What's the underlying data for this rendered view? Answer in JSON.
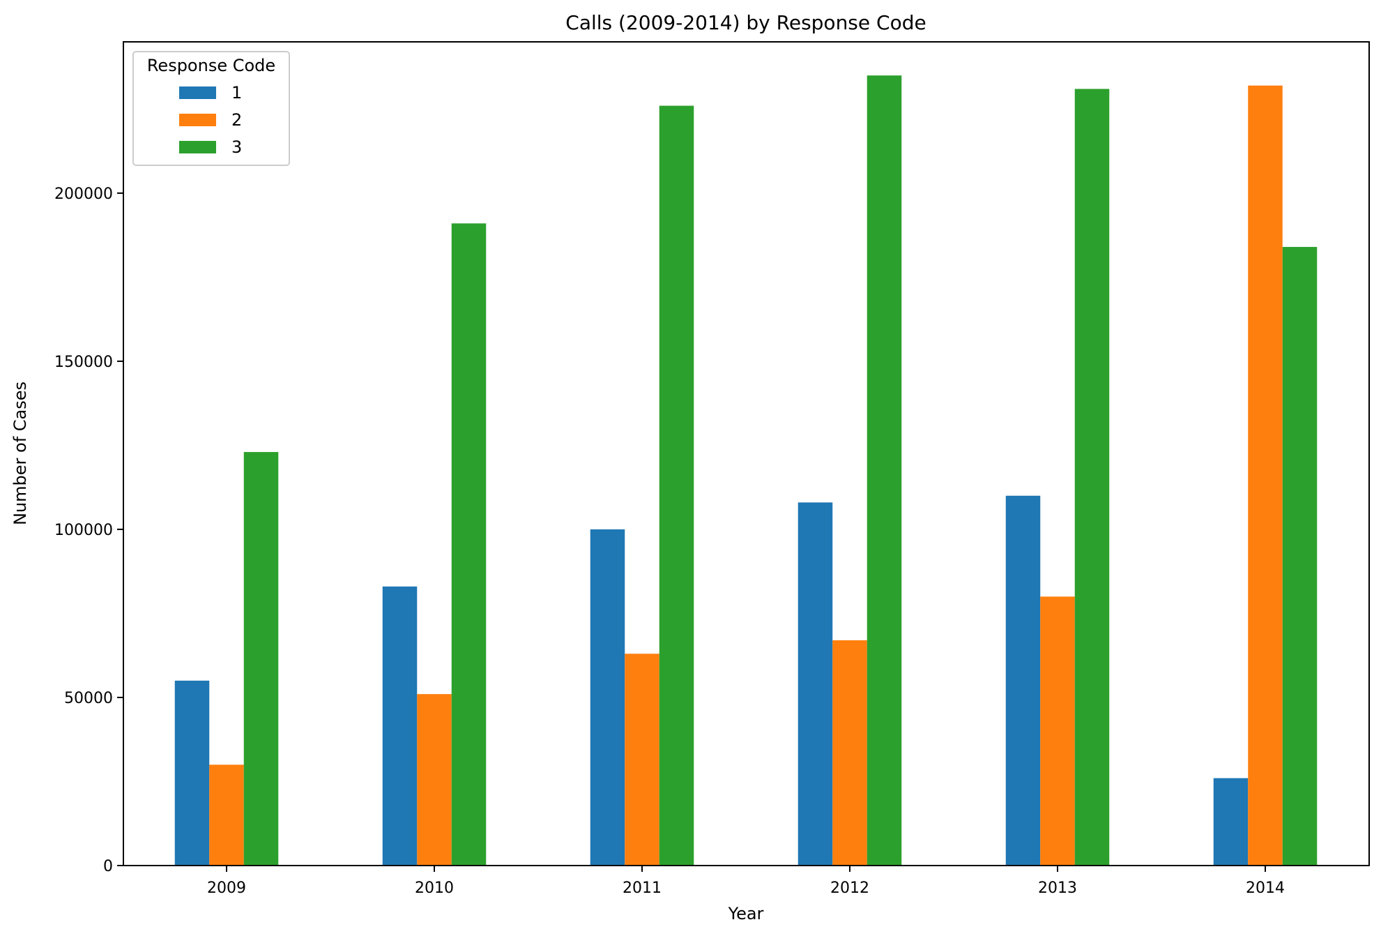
{
  "chart_data": {
    "type": "bar",
    "title": "Calls (2009-2014) by Response Code",
    "xlabel": "Year",
    "ylabel": "Number of Cases",
    "categories": [
      "2009",
      "2010",
      "2011",
      "2012",
      "2013",
      "2014"
    ],
    "series": [
      {
        "name": "1",
        "color": "#1f77b4",
        "values": [
          55000,
          83000,
          100000,
          108000,
          110000,
          26000
        ]
      },
      {
        "name": "2",
        "color": "#ff7f0e",
        "values": [
          30000,
          51000,
          63000,
          67000,
          80000,
          232000
        ]
      },
      {
        "name": "3",
        "color": "#2ca02c",
        "values": [
          123000,
          191000,
          226000,
          235000,
          231000,
          184000
        ]
      }
    ],
    "ylim": [
      0,
      245000
    ],
    "yticks": [
      0,
      50000,
      100000,
      150000,
      200000
    ],
    "grid": false,
    "legend": {
      "title": "Response Code",
      "placement": "top-left"
    }
  }
}
